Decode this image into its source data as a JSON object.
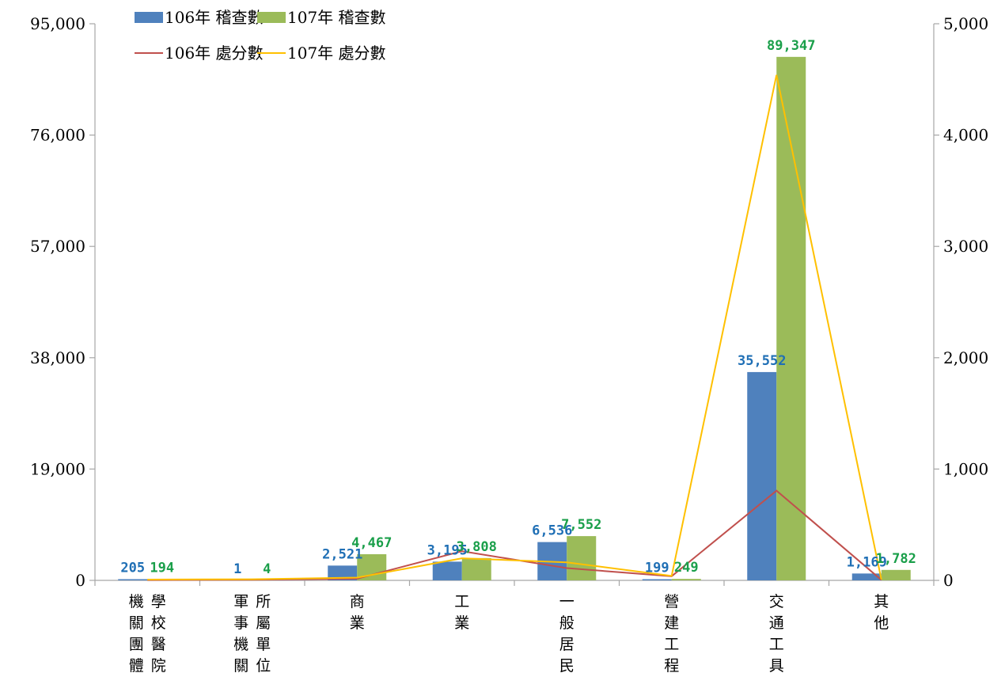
{
  "chart_data": {
    "type": "bar",
    "categories": [
      [
        "機",
        "關",
        "團",
        "體",
        "學",
        "校",
        "醫",
        "院"
      ],
      [
        "軍",
        "事",
        "機",
        "關",
        "所",
        "屬",
        "單",
        "位"
      ],
      [
        "商",
        "業"
      ],
      [
        "工",
        "業"
      ],
      [
        "一",
        "般",
        "居",
        "民"
      ],
      [
        "營",
        "建",
        "工",
        "程"
      ],
      [
        "交",
        "通",
        "工",
        "具"
      ],
      [
        "其",
        "他"
      ]
    ],
    "bar_series": [
      {
        "name": "106年 稽查數",
        "color": "#4f81bd",
        "label_color": "#1f6fb5",
        "values": [
          205,
          1,
          2521,
          3195,
          6536,
          199,
          35552,
          1169
        ],
        "labels": [
          "205",
          "1",
          "2,521",
          "3,195",
          "6,536",
          "199",
          "35,552",
          "1,169"
        ]
      },
      {
        "name": "107年 稽查數",
        "color": "#9bbb59",
        "label_color": "#1a9f4a",
        "values": [
          194,
          4,
          4467,
          3808,
          7552,
          249,
          89347,
          1782
        ],
        "labels": [
          "194",
          "4",
          "4,467",
          "3,808",
          "7,552",
          "249",
          "89,347",
          "1,782"
        ]
      }
    ],
    "line_series": [
      {
        "name": "106年 處分數",
        "color": "#c0504d",
        "axis": "right",
        "values": [
          3,
          5,
          15,
          262,
          110,
          37,
          806,
          4
        ]
      },
      {
        "name": "107年 處分數",
        "color": "#ffc000",
        "axis": "right",
        "values": [
          7,
          10,
          25,
          198,
          162,
          40,
          4540,
          8
        ]
      }
    ],
    "y_left": {
      "min": 0,
      "max": 95000,
      "ticks": [
        0,
        19000,
        38000,
        57000,
        76000,
        95000
      ],
      "tick_labels": [
        "0",
        "19,000",
        "38,000",
        "57,000",
        "76,000",
        "95,000"
      ]
    },
    "y_right": {
      "min": 0,
      "max": 5000,
      "ticks": [
        0,
        1000,
        2000,
        3000,
        4000,
        5000
      ],
      "tick_labels": [
        "0",
        "1,000",
        "2,000",
        "3,000",
        "4,000",
        "5,000"
      ]
    },
    "legend": "top-left",
    "grid": false
  }
}
